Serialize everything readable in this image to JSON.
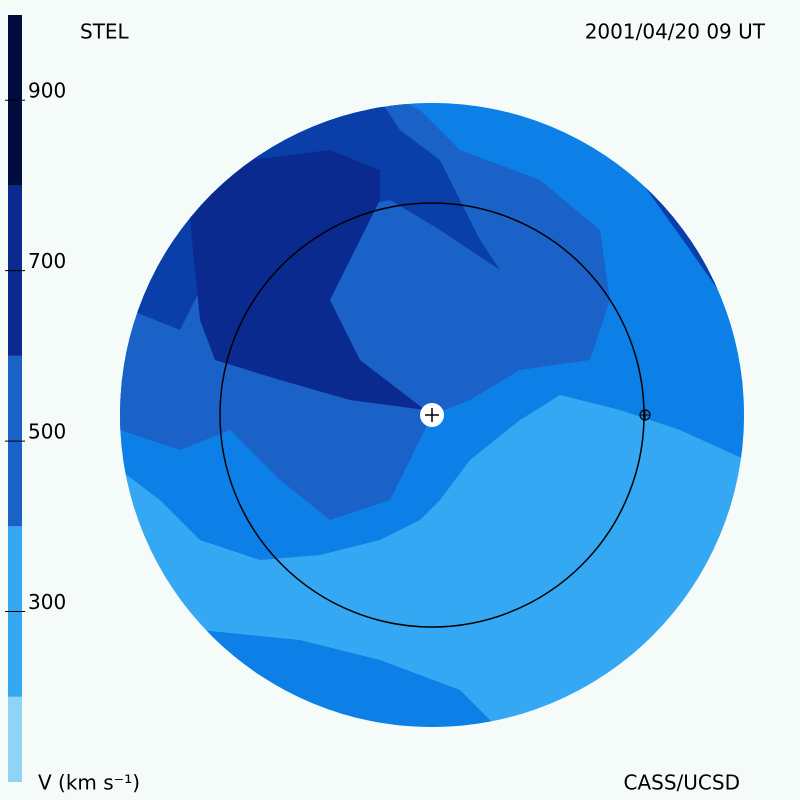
{
  "header": {
    "observatory": "STEL",
    "datetime": "2001/04/20 09 UT"
  },
  "footer": {
    "axis_label": "V (km s⁻¹)",
    "credit": "CASS/UCSD"
  },
  "colorbar": {
    "vlim": [
      100,
      1000
    ],
    "ticks": [
      300,
      500,
      700,
      900
    ],
    "bands": [
      {
        "from": 100,
        "to": 200,
        "color": "#8fd4f4"
      },
      {
        "from": 200,
        "to": 400,
        "color": "#34a8f2"
      },
      {
        "from": 400,
        "to": 600,
        "color": "#1a62c8"
      },
      {
        "from": 600,
        "to": 800,
        "color": "#0a2a90"
      },
      {
        "from": 800,
        "to": 1000,
        "color": "#000c3c"
      }
    ]
  }
}
